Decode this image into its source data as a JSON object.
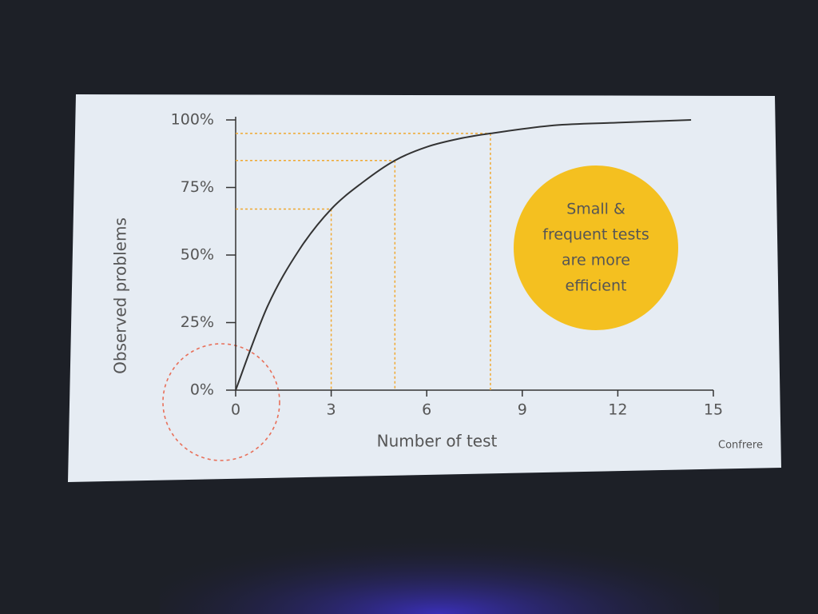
{
  "chart_data": {
    "type": "line",
    "x_label": "Number of test",
    "y_label": "Observed problems",
    "x": [
      0,
      1,
      2,
      3,
      4,
      5,
      6,
      7,
      8,
      10,
      12,
      14.3
    ],
    "series": [
      {
        "name": "Observed problems",
        "color": "#333333",
        "values": [
          0,
          31,
          52,
          67,
          77,
          85,
          90,
          93,
          95,
          98,
          99,
          100
        ]
      }
    ],
    "guide_x": [
      3,
      5,
      8
    ],
    "guide_y": [
      67,
      85,
      95
    ],
    "guide_color": "#f0a830",
    "xlim": [
      0,
      15
    ],
    "xticks": [
      0,
      3,
      6,
      9,
      12,
      15
    ],
    "ylim": [
      0,
      100
    ],
    "yticks": [
      {
        "value": 0,
        "label": "0%"
      },
      {
        "value": 25,
        "label": "25%"
      },
      {
        "value": 50,
        "label": "50%"
      },
      {
        "value": 75,
        "label": "75%"
      },
      {
        "value": 100,
        "label": "100%"
      }
    ],
    "annotation": [
      "Small &",
      "frequent tests",
      "are more",
      "efficient"
    ],
    "annotation_color": "#f4c020",
    "logo": "Confrere"
  }
}
